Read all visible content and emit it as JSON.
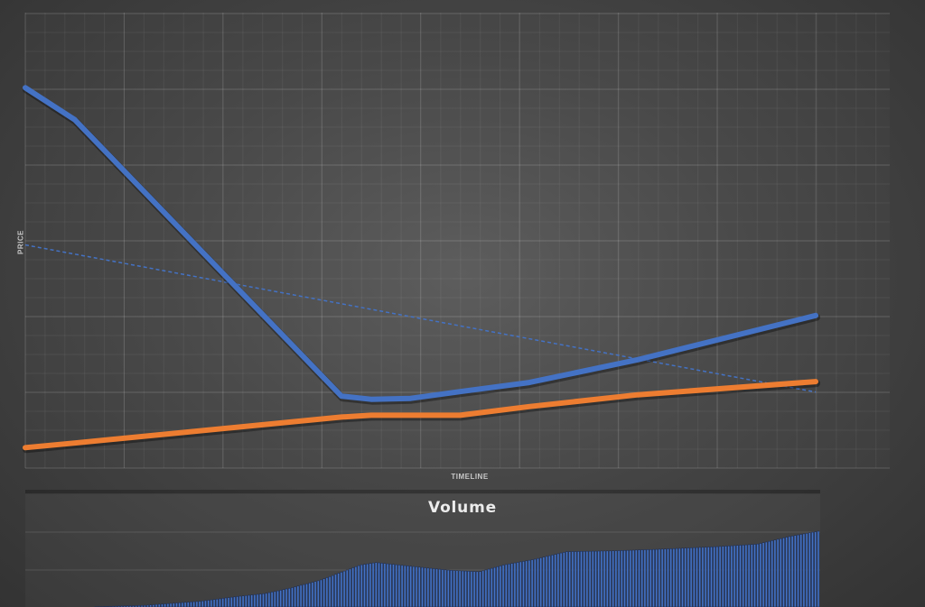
{
  "chart_data": [
    {
      "type": "line",
      "title": "",
      "xlabel": "TIMELINE",
      "ylabel": "PRICE",
      "grid": true,
      "legend": "none",
      "x": [
        0,
        0.5,
        3.2,
        3.5,
        3.9,
        4.4,
        5.1,
        6.2,
        8.0
      ],
      "xlim": [
        0,
        8
      ],
      "ylim": [
        0,
        100
      ],
      "series": [
        {
          "values": [
            83.5,
            76.5,
            15.8,
            15.1,
            15.3,
            16.8,
            18.8,
            23.8,
            33.5
          ],
          "color": "#4472c4",
          "style": "thick"
        },
        {
          "values": [
            4.5,
            5.5,
            11.2,
            11.6,
            11.6,
            11.6,
            13.5,
            16.1,
            19.0
          ],
          "color": "#ed7d31",
          "style": "thick"
        }
      ],
      "trendline": {
        "from": 49,
        "to": 16.7,
        "color": "#4472c4",
        "style": "dashed"
      }
    },
    {
      "type": "area",
      "title": "Volume",
      "legend": "none",
      "grid": true,
      "xlim": [
        0,
        100
      ],
      "ylim": [
        0,
        100
      ],
      "x": [
        0,
        8,
        15,
        22,
        27,
        30,
        33,
        37,
        42,
        44,
        48,
        53,
        57,
        60,
        64,
        68,
        74,
        80,
        87,
        92,
        96,
        100
      ],
      "values": [
        0,
        0,
        2,
        7,
        13,
        16,
        22,
        32,
        50,
        53,
        49,
        44,
        42,
        50,
        57,
        66,
        67,
        69,
        72,
        75,
        84,
        91
      ],
      "color": "#4472c4"
    }
  ]
}
